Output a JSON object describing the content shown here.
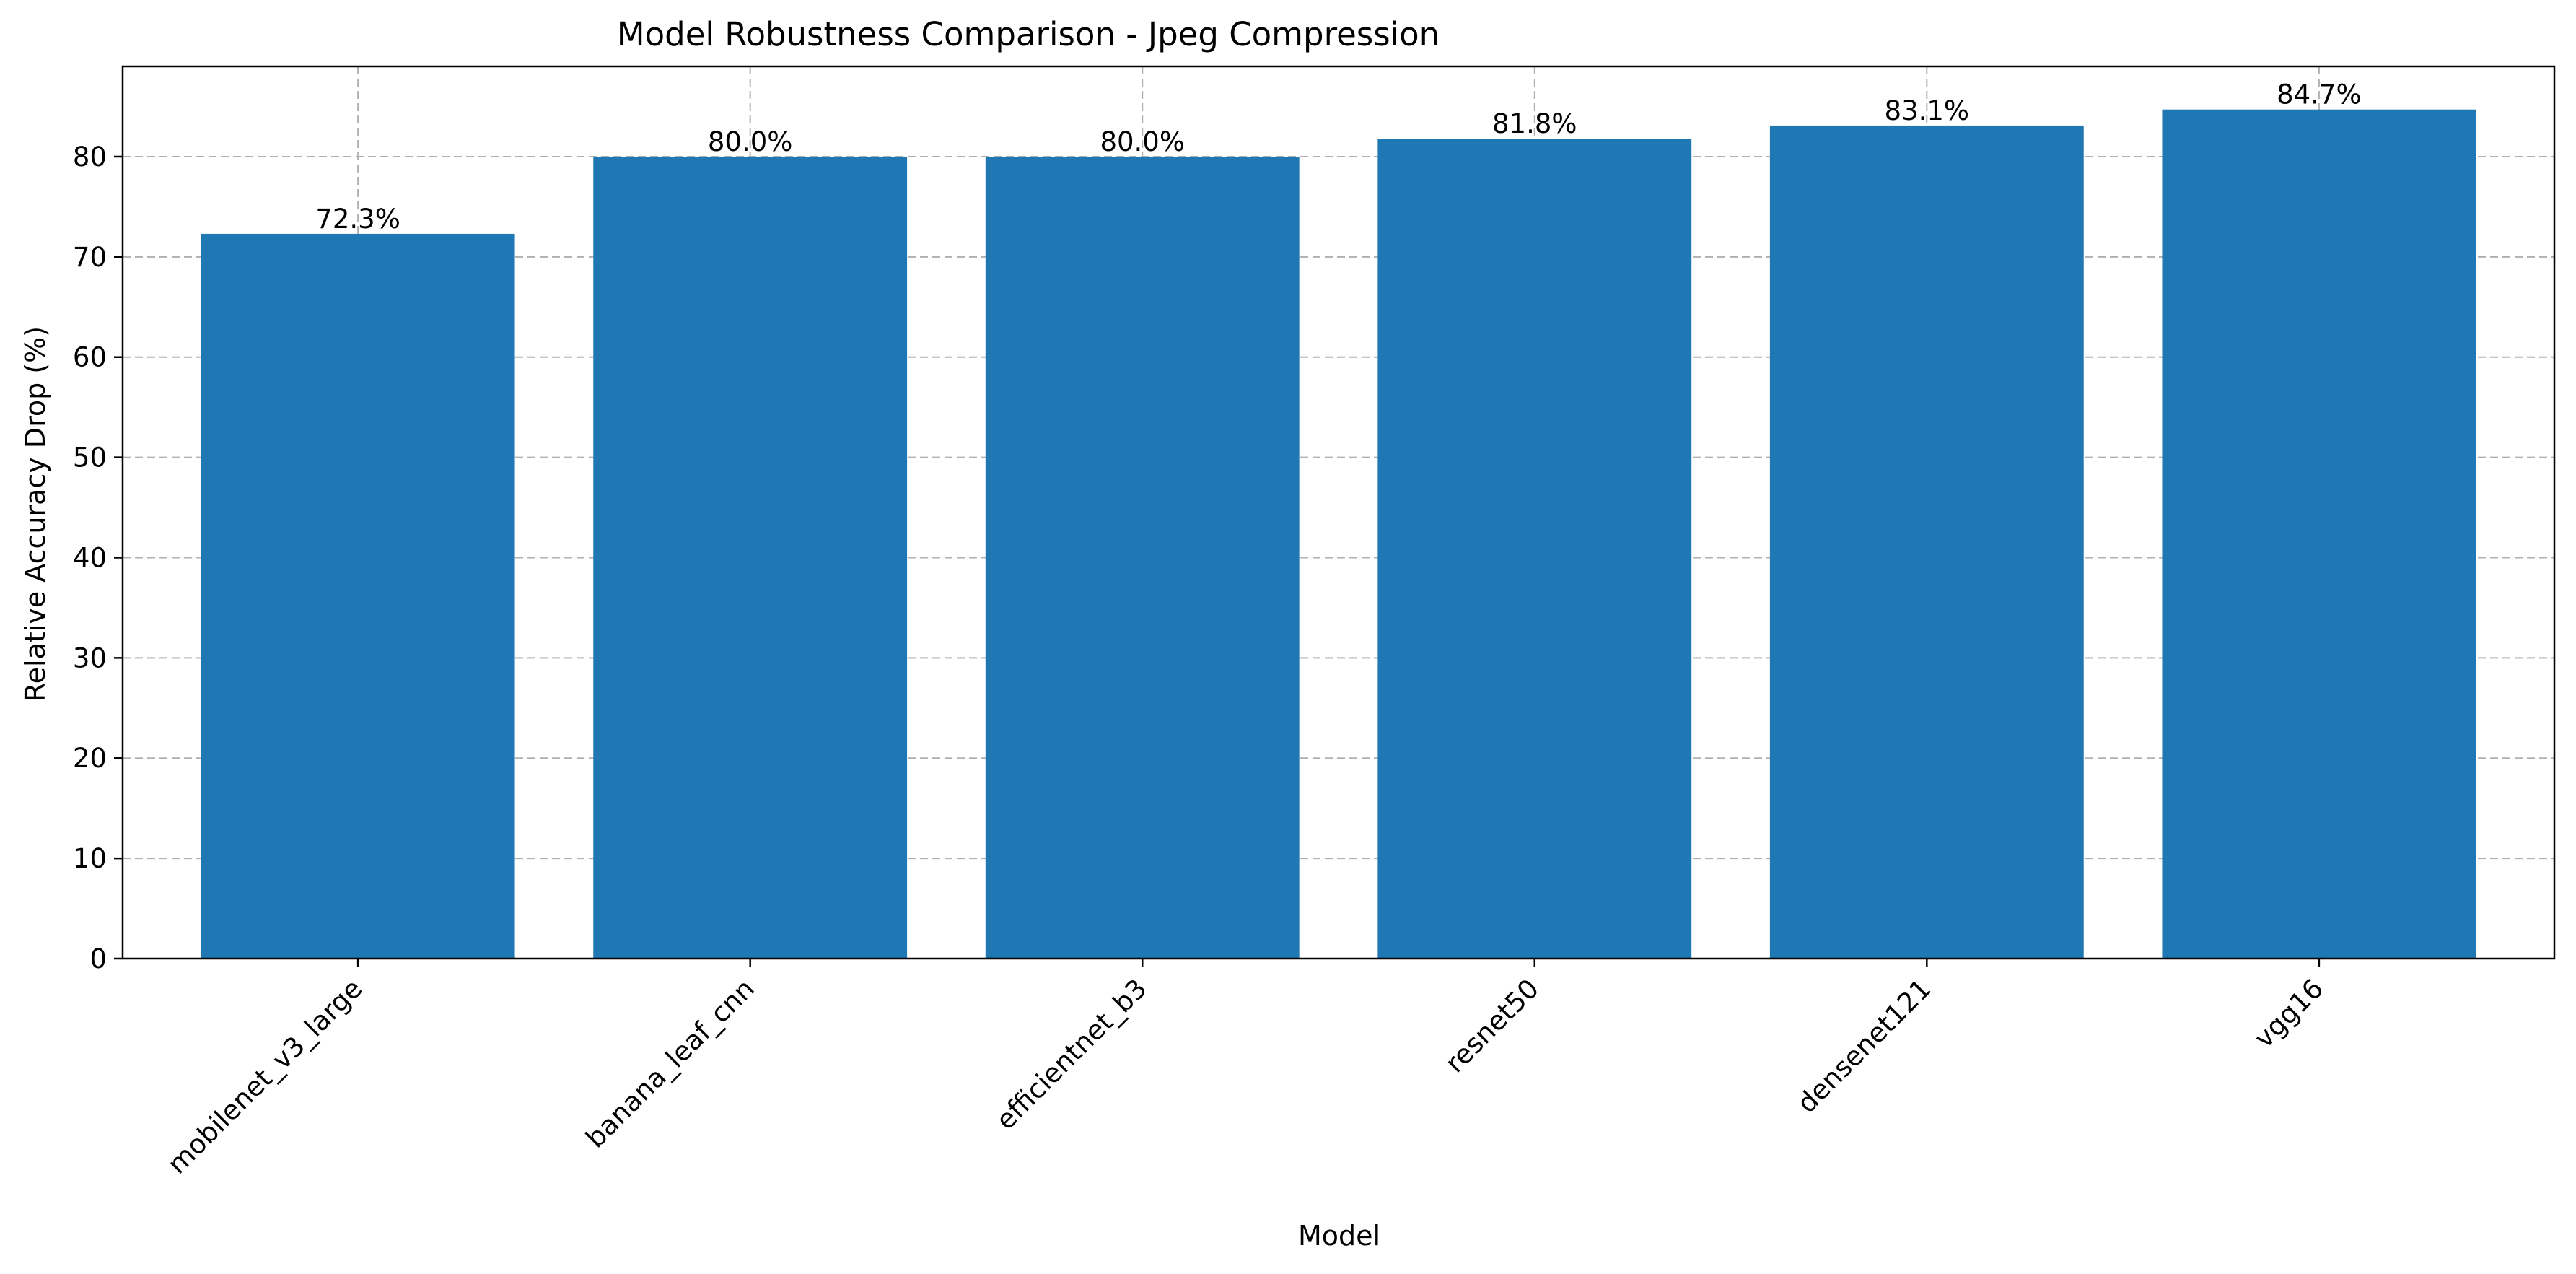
{
  "chart_data": {
    "type": "bar",
    "title": "Model Robustness Comparison - Jpeg Compression",
    "xlabel": "Model",
    "ylabel": "Relative Accuracy Drop (%)",
    "categories": [
      "mobilenet_v3_large",
      "banana_leaf_cnn",
      "efficientnet_b3",
      "resnet50",
      "densenet121",
      "vgg16"
    ],
    "values": [
      72.3,
      80.0,
      80.0,
      81.8,
      83.1,
      84.7
    ],
    "value_labels": [
      "72.3%",
      "80.0%",
      "80.0%",
      "81.8%",
      "83.1%",
      "84.7%"
    ],
    "ylim": [
      0,
      89
    ],
    "yticks": [
      0,
      10,
      20,
      30,
      40,
      50,
      60,
      70,
      80
    ],
    "grid": true,
    "grid_style": "dashed",
    "bar_color": "#1f77b4",
    "legend": "none"
  }
}
